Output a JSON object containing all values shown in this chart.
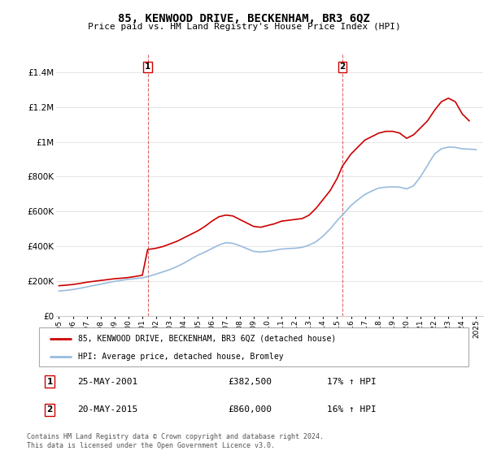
{
  "title": "85, KENWOOD DRIVE, BECKENHAM, BR3 6QZ",
  "subtitle": "Price paid vs. HM Land Registry's House Price Index (HPI)",
  "red_label": "85, KENWOOD DRIVE, BECKENHAM, BR3 6QZ (detached house)",
  "blue_label": "HPI: Average price, detached house, Bromley",
  "footnote": "Contains HM Land Registry data © Crown copyright and database right 2024.\nThis data is licensed under the Open Government Licence v3.0.",
  "transactions": [
    {
      "num": 1,
      "date": "25-MAY-2001",
      "price": "£382,500",
      "hpi": "17% ↑ HPI",
      "year": 2001.38
    },
    {
      "num": 2,
      "date": "20-MAY-2015",
      "price": "£860,000",
      "hpi": "16% ↑ HPI",
      "year": 2015.38
    }
  ],
  "red_color": "#cc0000",
  "blue_color": "#99bbdd",
  "ylim": [
    0,
    1500000
  ],
  "yticks": [
    0,
    200000,
    400000,
    600000,
    800000,
    1000000,
    1200000,
    1400000
  ],
  "ytick_labels": [
    "£0",
    "£200K",
    "£400K",
    "£600K",
    "£800K",
    "£1M",
    "£1.2M",
    "£1.4M"
  ],
  "years_red": [
    1995.0,
    1995.5,
    1996.0,
    1996.5,
    1997.0,
    1997.5,
    1998.0,
    1998.5,
    1999.0,
    1999.5,
    2000.0,
    2000.5,
    2001.0,
    2001.38,
    2002.0,
    2002.5,
    2003.0,
    2003.5,
    2004.0,
    2004.5,
    2005.0,
    2005.5,
    2006.0,
    2006.5,
    2007.0,
    2007.5,
    2008.0,
    2008.5,
    2009.0,
    2009.5,
    2010.0,
    2010.5,
    2011.0,
    2011.5,
    2012.0,
    2012.5,
    2013.0,
    2013.5,
    2014.0,
    2014.5,
    2015.0,
    2015.38,
    2016.0,
    2016.5,
    2017.0,
    2017.5,
    2018.0,
    2018.5,
    2019.0,
    2019.5,
    2020.0,
    2020.5,
    2021.0,
    2021.5,
    2022.0,
    2022.5,
    2023.0,
    2023.5,
    2024.0,
    2024.5
  ],
  "vals_red": [
    175000,
    178000,
    182000,
    188000,
    195000,
    200000,
    205000,
    210000,
    215000,
    218000,
    222000,
    228000,
    235000,
    382500,
    390000,
    400000,
    415000,
    430000,
    450000,
    470000,
    490000,
    515000,
    545000,
    570000,
    580000,
    575000,
    555000,
    535000,
    515000,
    510000,
    520000,
    530000,
    545000,
    550000,
    555000,
    560000,
    580000,
    620000,
    670000,
    720000,
    790000,
    860000,
    930000,
    970000,
    1010000,
    1030000,
    1050000,
    1060000,
    1060000,
    1050000,
    1020000,
    1040000,
    1080000,
    1120000,
    1180000,
    1230000,
    1250000,
    1230000,
    1160000,
    1120000
  ],
  "years_blue": [
    1995.0,
    1995.5,
    1996.0,
    1996.5,
    1997.0,
    1997.5,
    1998.0,
    1998.5,
    1999.0,
    1999.5,
    2000.0,
    2000.5,
    2001.0,
    2001.5,
    2002.0,
    2002.5,
    2003.0,
    2003.5,
    2004.0,
    2004.5,
    2005.0,
    2005.5,
    2006.0,
    2006.5,
    2007.0,
    2007.5,
    2008.0,
    2008.5,
    2009.0,
    2009.5,
    2010.0,
    2010.5,
    2011.0,
    2011.5,
    2012.0,
    2012.5,
    2013.0,
    2013.5,
    2014.0,
    2014.5,
    2015.0,
    2015.5,
    2016.0,
    2016.5,
    2017.0,
    2017.5,
    2018.0,
    2018.5,
    2019.0,
    2019.5,
    2020.0,
    2020.5,
    2021.0,
    2021.5,
    2022.0,
    2022.5,
    2023.0,
    2023.5,
    2024.0,
    2024.5,
    2025.0
  ],
  "vals_blue": [
    145000,
    148000,
    153000,
    160000,
    168000,
    176000,
    184000,
    192000,
    200000,
    206000,
    212000,
    216000,
    220000,
    230000,
    242000,
    255000,
    268000,
    285000,
    305000,
    328000,
    350000,
    368000,
    388000,
    408000,
    422000,
    418000,
    405000,
    388000,
    372000,
    368000,
    372000,
    378000,
    385000,
    388000,
    390000,
    395000,
    408000,
    428000,
    460000,
    500000,
    548000,
    590000,
    635000,
    668000,
    698000,
    718000,
    735000,
    740000,
    742000,
    740000,
    730000,
    748000,
    800000,
    865000,
    930000,
    960000,
    970000,
    968000,
    960000,
    958000,
    955000
  ]
}
